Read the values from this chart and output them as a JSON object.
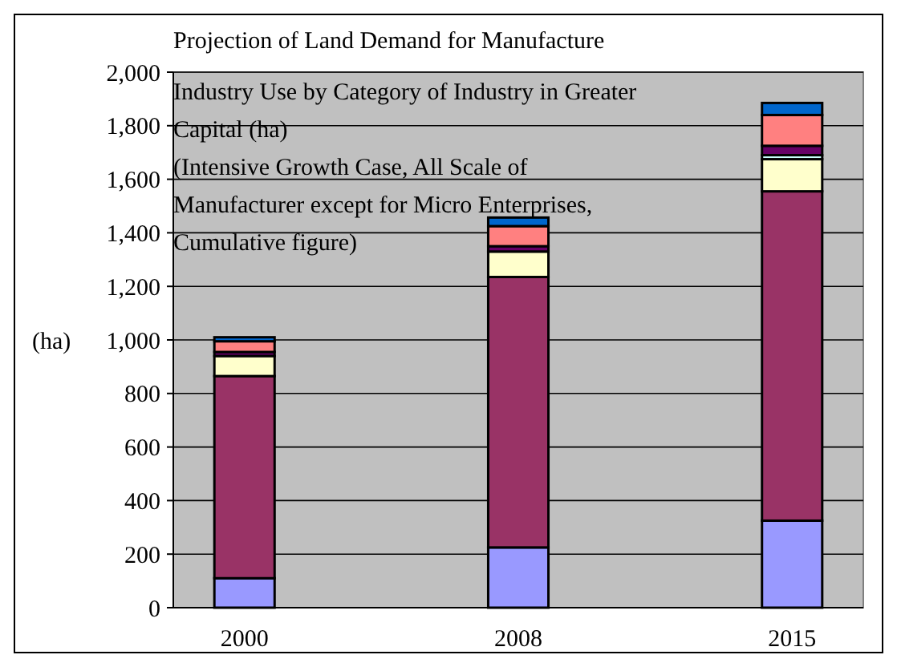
{
  "chart_data": {
    "type": "bar",
    "title": "Projection of Land Demand for Manufacture Industry Use by Category of Industry in Greater Capital  (ha)",
    "subtitle": "(Intensive Growth Case, All Scale of Manufacturer except for Micro Enterprises, Cumulative figure)",
    "ylabel": "(ha)",
    "categories": [
      "2000",
      "2008",
      "2015"
    ],
    "stacked": true,
    "series": [
      {
        "color": "#9999ff",
        "values": [
          110,
          225,
          325
        ]
      },
      {
        "color": "#993366",
        "values": [
          755,
          1010,
          1230
        ]
      },
      {
        "color": "#ffffcc",
        "values": [
          75,
          95,
          120
        ]
      },
      {
        "color": "#ccffff",
        "values": [
          null,
          null,
          15
        ]
      },
      {
        "color": "#660066",
        "values": [
          15,
          20,
          35
        ]
      },
      {
        "color": "#ff8080",
        "values": [
          40,
          75,
          115
        ]
      },
      {
        "color": "#0066cc",
        "values": [
          15,
          32,
          45
        ]
      }
    ],
    "ylim": [
      0,
      2000
    ],
    "yticks": [
      {
        "value": 0,
        "label": "0"
      },
      {
        "value": 200,
        "label": "200"
      },
      {
        "value": 400,
        "label": "400"
      },
      {
        "value": 600,
        "label": "600"
      },
      {
        "value": 800,
        "label": "800"
      },
      {
        "value": 1000,
        "label": "1,000"
      },
      {
        "value": 1200,
        "label": "1,200"
      },
      {
        "value": 1400,
        "label": "1,400"
      },
      {
        "value": 1600,
        "label": "1,600"
      },
      {
        "value": 1800,
        "label": "1,800"
      },
      {
        "value": 2000,
        "label": "2,000"
      }
    ],
    "grid": "y"
  }
}
